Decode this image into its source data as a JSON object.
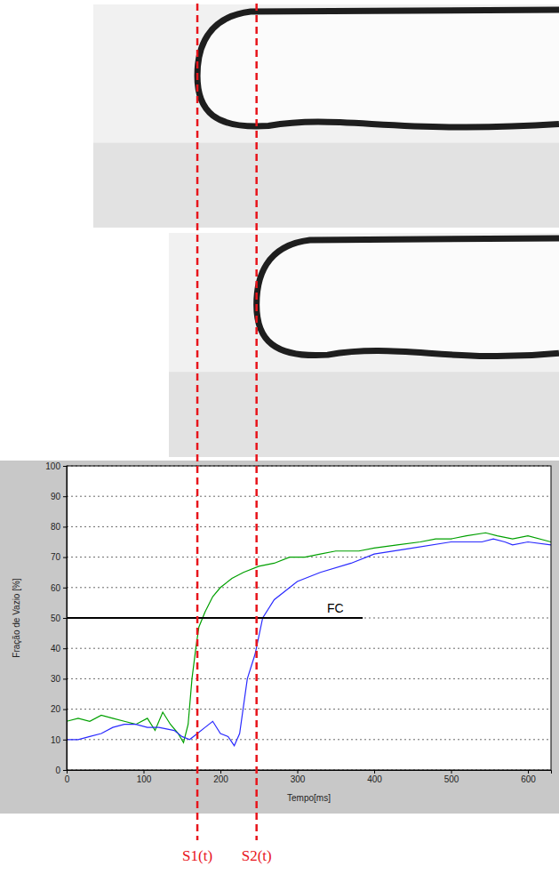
{
  "chart_data": {
    "type": "line",
    "xlabel": "Tempo[ms]",
    "ylabel": "Fração de Vazio [%]",
    "xlim": [
      0,
      630
    ],
    "xticks": [
      0,
      100,
      200,
      300,
      400,
      500,
      600
    ],
    "ylim": [
      0,
      100
    ],
    "yticks": [
      0,
      10,
      20,
      30,
      40,
      50,
      60,
      70,
      80,
      90,
      100
    ],
    "grid": true,
    "series": [
      {
        "name": "S1",
        "color": "#00a000",
        "x": [
          0,
          15,
          30,
          45,
          60,
          75,
          90,
          105,
          115,
          125,
          135,
          145,
          152,
          158,
          163,
          168,
          172,
          180,
          190,
          200,
          215,
          230,
          250,
          270,
          290,
          310,
          330,
          350,
          380,
          400,
          430,
          460,
          480,
          500,
          520,
          545,
          560,
          580,
          600,
          630
        ],
        "values": [
          16,
          17,
          16,
          18,
          17,
          16,
          15,
          17,
          13,
          19,
          15,
          12,
          9,
          15,
          30,
          40,
          47,
          52,
          57,
          60,
          63,
          65,
          67,
          68,
          70,
          70,
          71,
          72,
          72,
          73,
          74,
          75,
          76,
          76,
          77,
          78,
          77,
          76,
          77,
          75
        ]
      },
      {
        "name": "S2",
        "color": "#2a2aff",
        "x": [
          0,
          15,
          30,
          45,
          60,
          75,
          90,
          105,
          120,
          140,
          150,
          160,
          170,
          180,
          190,
          200,
          210,
          218,
          225,
          235,
          245,
          255,
          270,
          285,
          300,
          330,
          370,
          400,
          450,
          500,
          540,
          555,
          570,
          580,
          600,
          630
        ],
        "values": [
          10,
          10,
          11,
          12,
          14,
          15,
          15,
          14,
          14,
          13,
          11,
          10,
          12,
          14,
          16,
          12,
          11,
          8,
          12,
          30,
          38,
          50,
          56,
          59,
          62,
          65,
          68,
          71,
          73,
          75,
          75,
          76,
          75,
          74,
          75,
          74
        ]
      }
    ],
    "annotations": {
      "threshold": {
        "label": "FC",
        "value": 50,
        "x_end": 385
      },
      "markers": [
        {
          "label": "S1(t)",
          "x": 170
        },
        {
          "label": "S2(t)",
          "x": 247
        }
      ]
    }
  }
}
